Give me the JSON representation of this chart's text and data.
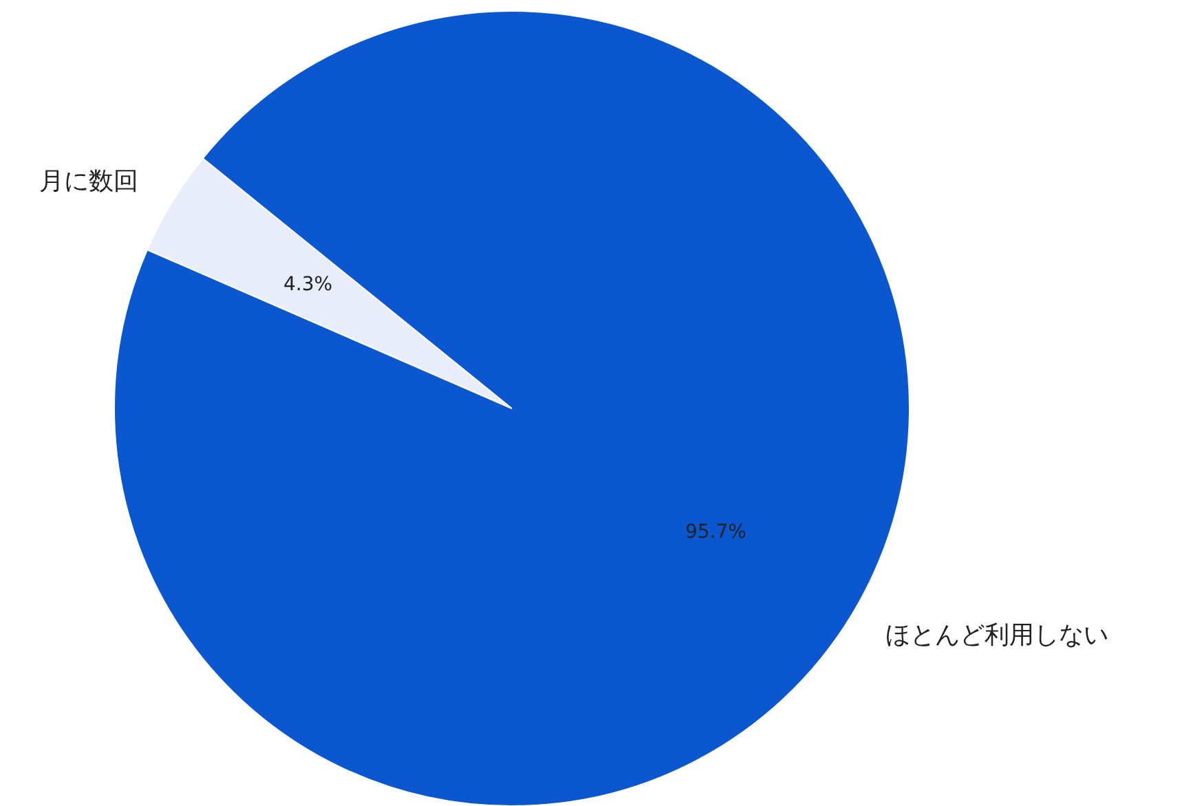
{
  "chart_data": {
    "type": "pie",
    "categories": [
      "月に数回",
      "ほとんど利用しない"
    ],
    "values": [
      4.3,
      95.7
    ],
    "value_labels": [
      "4.3%",
      "95.7%"
    ],
    "colors": [
      "#e8edf9",
      "#0b57d0"
    ]
  }
}
